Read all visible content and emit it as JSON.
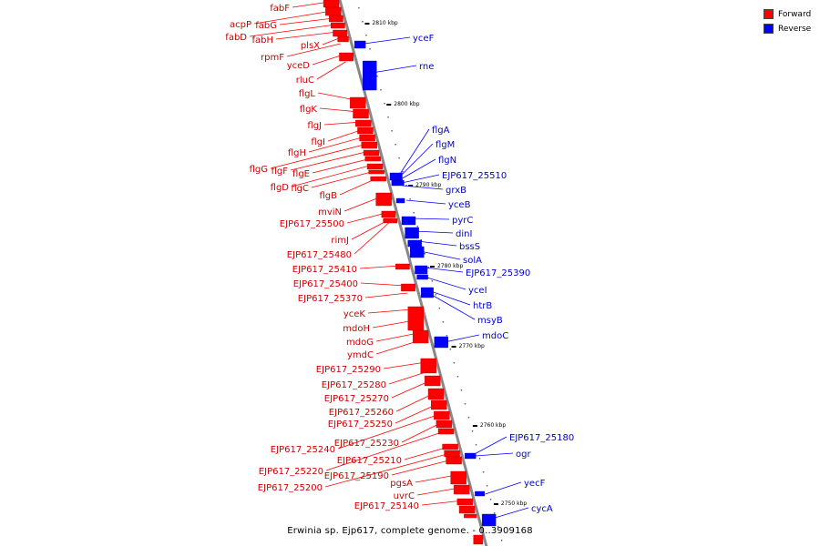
{
  "legend": {
    "forward_label": "Forward",
    "reverse_label": "Reverse",
    "forward_color": "#ff0000",
    "reverse_color": "#0000ff"
  },
  "colors": {
    "forward_label": "#cc0000",
    "reverse_label": "#0000cc",
    "backbone": "#888888"
  },
  "caption": "Erwinia sp. Ejp617, complete genome. - 0..3909168",
  "ticks": [
    "2810 kbp",
    "2800 kbp",
    "2790 kbp",
    "2780 kbp",
    "2770 kbp",
    "2760 kbp",
    "2750 kbp"
  ],
  "forward_genes": [
    "fabF",
    "acpP",
    "fabG",
    "fabD",
    "fabH",
    "plsX",
    "rpmF",
    "yceD",
    "rluC",
    "flgL",
    "flgK",
    "flgJ",
    "flgI",
    "flgH",
    "flgG",
    "flgF",
    "flgE",
    "flgD",
    "flgC",
    "flgB",
    "mviN",
    "EJP617_25500",
    "rimJ",
    "EJP617_25480",
    "EJP617_25410",
    "EJP617_25400",
    "EJP617_25370",
    "yceK",
    "mdoH",
    "mdoG",
    "ymdC",
    "EJP617_25290",
    "EJP617_25280",
    "EJP617_25270",
    "EJP617_25260",
    "EJP617_25250",
    "EJP617_25240",
    "EJP617_25230",
    "EJP617_25220",
    "EJP617_25210",
    "EJP617_25200",
    "EJP617_25190",
    "pgsA",
    "uvrC",
    "EJP617_25140"
  ],
  "reverse_genes": [
    "yceF",
    "rne",
    "flgA",
    "flgM",
    "flgN",
    "EJP617_25510",
    "grxB",
    "yceB",
    "pyrC",
    "dinI",
    "bssS",
    "solA",
    "EJP617_25390",
    "yceI",
    "htrB",
    "msyB",
    "mdoC",
    "EJP617_25180",
    "ogr",
    "yecF",
    "cycA"
  ]
}
